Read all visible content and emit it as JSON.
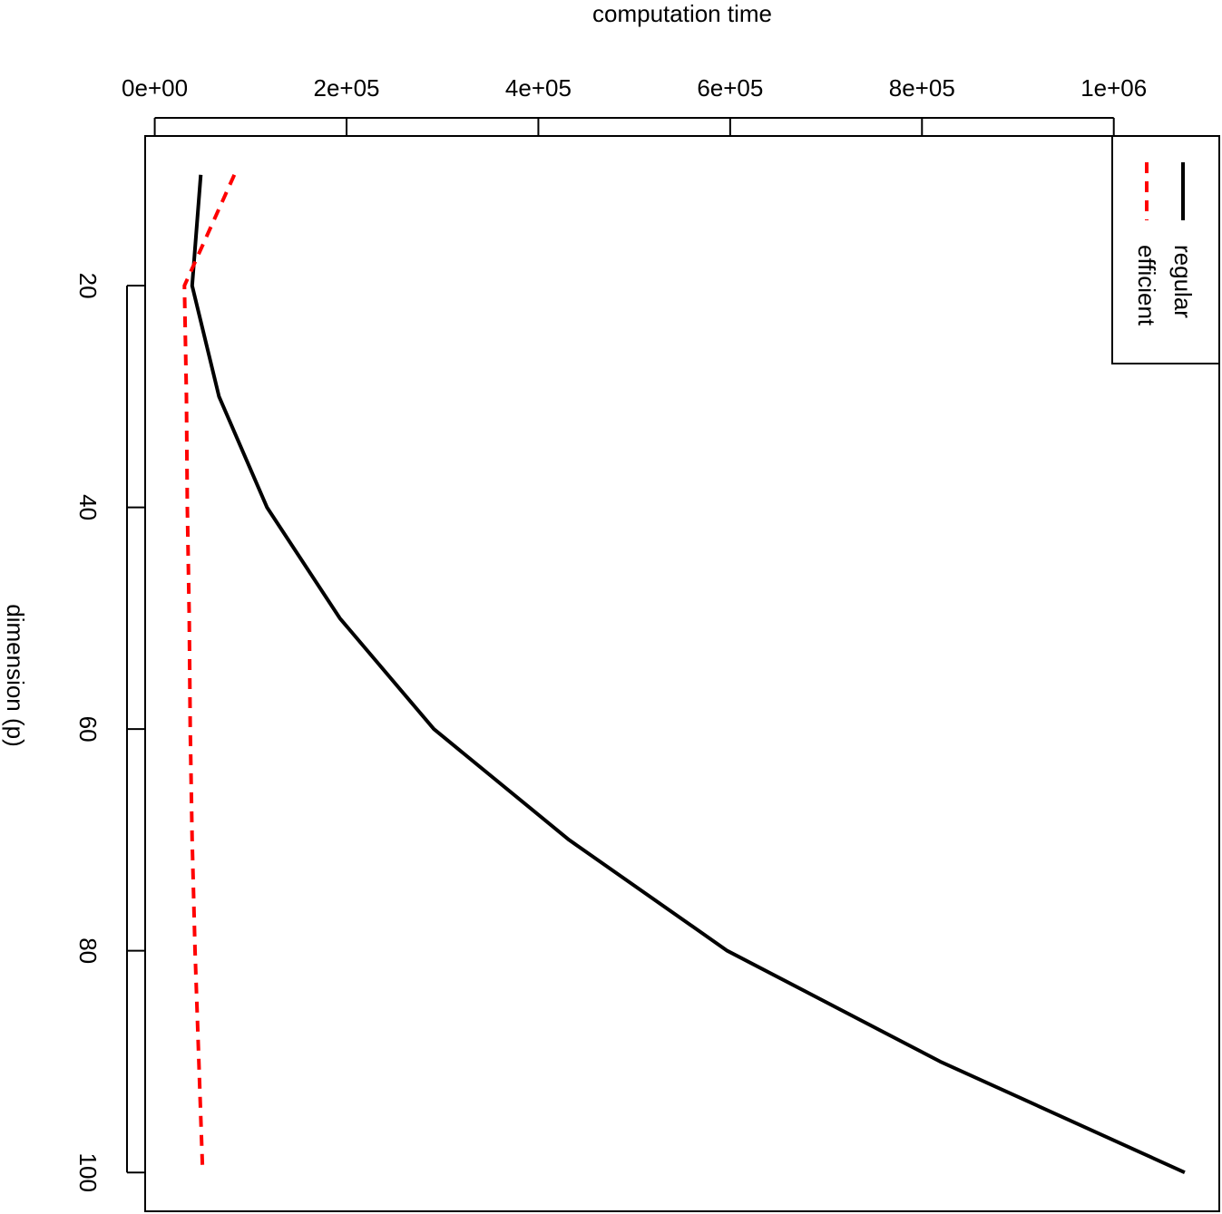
{
  "chart_data": {
    "type": "line",
    "orientation": "rotated-90",
    "value_axis": {
      "label": "computation time",
      "range": [
        -10000,
        1110000
      ],
      "ticks": [
        0,
        200000,
        400000,
        600000,
        800000,
        1000000
      ],
      "tick_labels": [
        "0e+00",
        "2e+05",
        "4e+05",
        "6e+05",
        "8e+05",
        "1e+06"
      ]
    },
    "dimension_axis": {
      "label": "dimension (p)",
      "range": [
        6.5,
        103.5
      ],
      "ticks": [
        20,
        40,
        60,
        80,
        100
      ],
      "tick_labels": [
        "20",
        "40",
        "60",
        "80",
        "100"
      ]
    },
    "x": [
      10,
      20,
      30,
      40,
      50,
      60,
      70,
      80,
      90,
      100
    ],
    "series": [
      {
        "name": "regular",
        "color": "#000000",
        "style": "solid",
        "values": [
          48000,
          39000,
          67000,
          117000,
          193000,
          291000,
          432000,
          597000,
          819000,
          1074000
        ]
      },
      {
        "name": "efficient",
        "color": "#ff0000",
        "style": "dashed",
        "values": [
          83000,
          31000,
          33000,
          34000,
          36000,
          37000,
          39000,
          42000,
          46000,
          50000
        ]
      }
    ],
    "legend": {
      "position": "top-right"
    },
    "grid": false
  }
}
